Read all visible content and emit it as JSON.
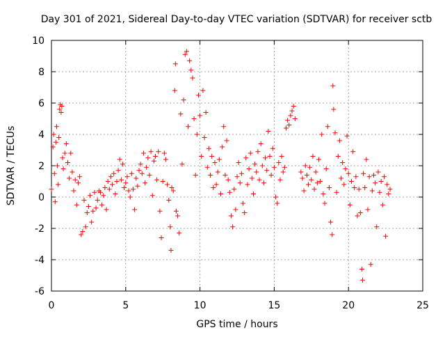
{
  "chart_data": {
    "type": "scatter",
    "title": "Day 301 of 2021, Sidereal Day-to-day VTEC variation (SDTVAR) for receiver sctb",
    "xlabel": "GPS time / hours",
    "ylabel": "SDTVAR / TECUs",
    "xlim": [
      0,
      25
    ],
    "ylim": [
      -6,
      10
    ],
    "xticks": [
      0,
      5,
      10,
      15,
      20,
      25
    ],
    "yticks": [
      -6,
      -4,
      -2,
      0,
      2,
      4,
      6,
      8,
      10
    ],
    "grid": true,
    "marker": "+",
    "series": [
      {
        "name": "SDTVAR",
        "color": "#ff0000",
        "points": [
          [
            0.0,
            0.5
          ],
          [
            0.1,
            3.2
          ],
          [
            0.15,
            4.0
          ],
          [
            0.2,
            1.5
          ],
          [
            0.25,
            -0.3
          ],
          [
            0.3,
            3.5
          ],
          [
            0.35,
            4.5
          ],
          [
            0.4,
            2.0
          ],
          [
            0.45,
            0.8
          ],
          [
            0.5,
            3.8
          ],
          [
            0.55,
            5.6
          ],
          [
            0.6,
            5.9
          ],
          [
            0.65,
            5.4
          ],
          [
            0.7,
            5.8
          ],
          [
            0.75,
            2.5
          ],
          [
            0.8,
            1.8
          ],
          [
            0.9,
            2.8
          ],
          [
            1.0,
            3.4
          ],
          [
            1.1,
            2.2
          ],
          [
            1.2,
            1.2
          ],
          [
            1.3,
            2.8
          ],
          [
            1.4,
            1.6
          ],
          [
            1.5,
            0.4
          ],
          [
            1.6,
            1.1
          ],
          [
            1.7,
            -0.5
          ],
          [
            1.8,
            0.9
          ],
          [
            1.9,
            1.3
          ],
          [
            2.0,
            -2.4
          ],
          [
            2.1,
            -2.2
          ],
          [
            2.2,
            -0.2
          ],
          [
            2.3,
            -1.9
          ],
          [
            2.4,
            -1.0
          ],
          [
            2.5,
            -0.6
          ],
          [
            2.6,
            0.1
          ],
          [
            2.7,
            -1.6
          ],
          [
            2.8,
            -0.9
          ],
          [
            2.9,
            0.3
          ],
          [
            3.0,
            -0.7
          ],
          [
            3.1,
            -0.2
          ],
          [
            3.2,
            0.4
          ],
          [
            3.3,
            0.3
          ],
          [
            3.4,
            -0.5
          ],
          [
            3.5,
            0.1
          ],
          [
            3.6,
            0.6
          ],
          [
            3.7,
            -0.8
          ],
          [
            3.8,
            1.0
          ],
          [
            3.9,
            0.5
          ],
          [
            4.0,
            1.3
          ],
          [
            4.1,
            0.8
          ],
          [
            4.2,
            1.5
          ],
          [
            4.3,
            0.2
          ],
          [
            4.4,
            1.0
          ],
          [
            4.5,
            1.7
          ],
          [
            4.6,
            2.4
          ],
          [
            4.7,
            1.1
          ],
          [
            4.8,
            2.1
          ],
          [
            4.9,
            0.6
          ],
          [
            5.0,
            0.9
          ],
          [
            5.1,
            1.3
          ],
          [
            5.2,
            0.4
          ],
          [
            5.3,
            0.0
          ],
          [
            5.4,
            1.5
          ],
          [
            5.5,
            0.5
          ],
          [
            5.6,
            -0.8
          ],
          [
            5.7,
            1.2
          ],
          [
            5.8,
            0.7
          ],
          [
            5.9,
            1.7
          ],
          [
            6.0,
            2.1
          ],
          [
            6.1,
            1.5
          ],
          [
            6.2,
            2.8
          ],
          [
            6.3,
            0.9
          ],
          [
            6.4,
            1.9
          ],
          [
            6.5,
            2.5
          ],
          [
            6.6,
            1.4
          ],
          [
            6.7,
            2.9
          ],
          [
            6.8,
            0.1
          ],
          [
            6.9,
            2.3
          ],
          [
            7.0,
            2.6
          ],
          [
            7.1,
            1.1
          ],
          [
            7.2,
            2.9
          ],
          [
            7.3,
            -0.9
          ],
          [
            7.4,
            -2.6
          ],
          [
            7.5,
            1.0
          ],
          [
            7.6,
            2.8
          ],
          [
            7.7,
            2.4
          ],
          [
            7.8,
            0.8
          ],
          [
            7.9,
            -0.2
          ],
          [
            8.0,
            -1.9
          ],
          [
            8.05,
            -3.4
          ],
          [
            8.1,
            0.6
          ],
          [
            8.2,
            0.4
          ],
          [
            8.3,
            6.8
          ],
          [
            8.35,
            8.5
          ],
          [
            8.4,
            -0.9
          ],
          [
            8.5,
            -1.2
          ],
          [
            8.6,
            -2.3
          ],
          [
            8.7,
            5.3
          ],
          [
            8.8,
            2.1
          ],
          [
            8.9,
            6.2
          ],
          [
            9.0,
            9.1
          ],
          [
            9.1,
            9.3
          ],
          [
            9.2,
            4.5
          ],
          [
            9.3,
            8.7
          ],
          [
            9.4,
            8.1
          ],
          [
            9.5,
            7.6
          ],
          [
            9.6,
            5.0
          ],
          [
            9.7,
            1.4
          ],
          [
            9.8,
            4.0
          ],
          [
            9.9,
            6.5
          ],
          [
            10.0,
            5.2
          ],
          [
            10.1,
            2.6
          ],
          [
            10.2,
            6.8
          ],
          [
            10.3,
            3.8
          ],
          [
            10.4,
            5.4
          ],
          [
            10.5,
            1.9
          ],
          [
            10.6,
            3.1
          ],
          [
            10.7,
            1.4
          ],
          [
            10.8,
            2.6
          ],
          [
            10.9,
            0.6
          ],
          [
            11.0,
            2.2
          ],
          [
            11.1,
            0.8
          ],
          [
            11.2,
            1.6
          ],
          [
            11.3,
            2.4
          ],
          [
            11.4,
            0.2
          ],
          [
            11.5,
            3.2
          ],
          [
            11.6,
            4.5
          ],
          [
            11.7,
            1.4
          ],
          [
            11.8,
            3.6
          ],
          [
            11.9,
            1.1
          ],
          [
            12.0,
            0.3
          ],
          [
            12.1,
            -1.2
          ],
          [
            12.2,
            -1.9
          ],
          [
            12.3,
            0.5
          ],
          [
            12.4,
            -0.8
          ],
          [
            12.5,
            1.3
          ],
          [
            12.6,
            2.2
          ],
          [
            12.7,
            0.9
          ],
          [
            12.8,
            1.5
          ],
          [
            12.9,
            -0.4
          ],
          [
            13.0,
            -1.0
          ],
          [
            13.1,
            2.5
          ],
          [
            13.2,
            0.8
          ],
          [
            13.3,
            1.8
          ],
          [
            13.4,
            2.8
          ],
          [
            13.5,
            1.2
          ],
          [
            13.6,
            0.2
          ],
          [
            13.7,
            2.1
          ],
          [
            13.8,
            1.6
          ],
          [
            13.9,
            2.9
          ],
          [
            14.0,
            1.1
          ],
          [
            14.1,
            3.4
          ],
          [
            14.2,
            2.0
          ],
          [
            14.3,
            0.9
          ],
          [
            14.4,
            2.5
          ],
          [
            14.5,
            1.7
          ],
          [
            14.6,
            4.2
          ],
          [
            14.7,
            2.6
          ],
          [
            14.8,
            1.4
          ],
          [
            14.9,
            3.1
          ],
          [
            15.0,
            1.9
          ],
          [
            15.1,
            0.0
          ],
          [
            15.2,
            -0.4
          ],
          [
            15.3,
            2.2
          ],
          [
            15.4,
            1.1
          ],
          [
            15.5,
            2.6
          ],
          [
            15.6,
            1.6
          ],
          [
            15.7,
            1.9
          ],
          [
            15.8,
            4.4
          ],
          [
            15.9,
            4.9
          ],
          [
            16.0,
            4.6
          ],
          [
            16.1,
            5.2
          ],
          [
            16.2,
            5.5
          ],
          [
            16.3,
            5.8
          ],
          [
            16.4,
            5.0
          ],
          [
            16.8,
            1.6
          ],
          [
            16.9,
            1.2
          ],
          [
            17.0,
            0.4
          ],
          [
            17.1,
            2.0
          ],
          [
            17.2,
            1.4
          ],
          [
            17.3,
            0.8
          ],
          [
            17.4,
            1.9
          ],
          [
            17.5,
            1.1
          ],
          [
            17.6,
            2.6
          ],
          [
            17.7,
            0.5
          ],
          [
            17.8,
            1.6
          ],
          [
            17.9,
            0.9
          ],
          [
            18.0,
            2.4
          ],
          [
            18.1,
            1.0
          ],
          [
            18.2,
            4.0
          ],
          [
            18.3,
            0.2
          ],
          [
            18.4,
            -0.4
          ],
          [
            18.5,
            1.8
          ],
          [
            18.6,
            4.5
          ],
          [
            18.7,
            0.6
          ],
          [
            18.8,
            -1.6
          ],
          [
            18.9,
            -2.4
          ],
          [
            18.95,
            7.1
          ],
          [
            19.0,
            5.6
          ],
          [
            19.1,
            4.1
          ],
          [
            19.2,
            0.3
          ],
          [
            19.3,
            2.6
          ],
          [
            19.4,
            3.6
          ],
          [
            19.5,
            1.2
          ],
          [
            19.6,
            2.2
          ],
          [
            19.7,
            0.8
          ],
          [
            19.8,
            1.8
          ],
          [
            19.9,
            3.9
          ],
          [
            20.0,
            1.5
          ],
          [
            20.1,
            -0.5
          ],
          [
            20.2,
            1.0
          ],
          [
            20.3,
            2.9
          ],
          [
            20.4,
            0.6
          ],
          [
            20.5,
            1.3
          ],
          [
            20.6,
            -1.2
          ],
          [
            20.7,
            0.5
          ],
          [
            20.8,
            -1.0
          ],
          [
            20.9,
            -4.6
          ],
          [
            20.95,
            -5.3
          ],
          [
            21.0,
            1.5
          ],
          [
            21.1,
            0.6
          ],
          [
            21.2,
            2.4
          ],
          [
            21.3,
            -0.8
          ],
          [
            21.4,
            1.3
          ],
          [
            21.5,
            -4.3
          ],
          [
            21.6,
            0.4
          ],
          [
            21.7,
            1.4
          ],
          [
            21.8,
            0.9
          ],
          [
            21.9,
            -1.9
          ],
          [
            22.0,
            1.6
          ],
          [
            22.1,
            0.3
          ],
          [
            22.2,
            1.0
          ],
          [
            22.3,
            -0.5
          ],
          [
            22.4,
            1.3
          ],
          [
            22.5,
            -2.5
          ],
          [
            22.6,
            0.8
          ],
          [
            22.7,
            0.2
          ],
          [
            22.8,
            0.5
          ]
        ]
      }
    ]
  }
}
